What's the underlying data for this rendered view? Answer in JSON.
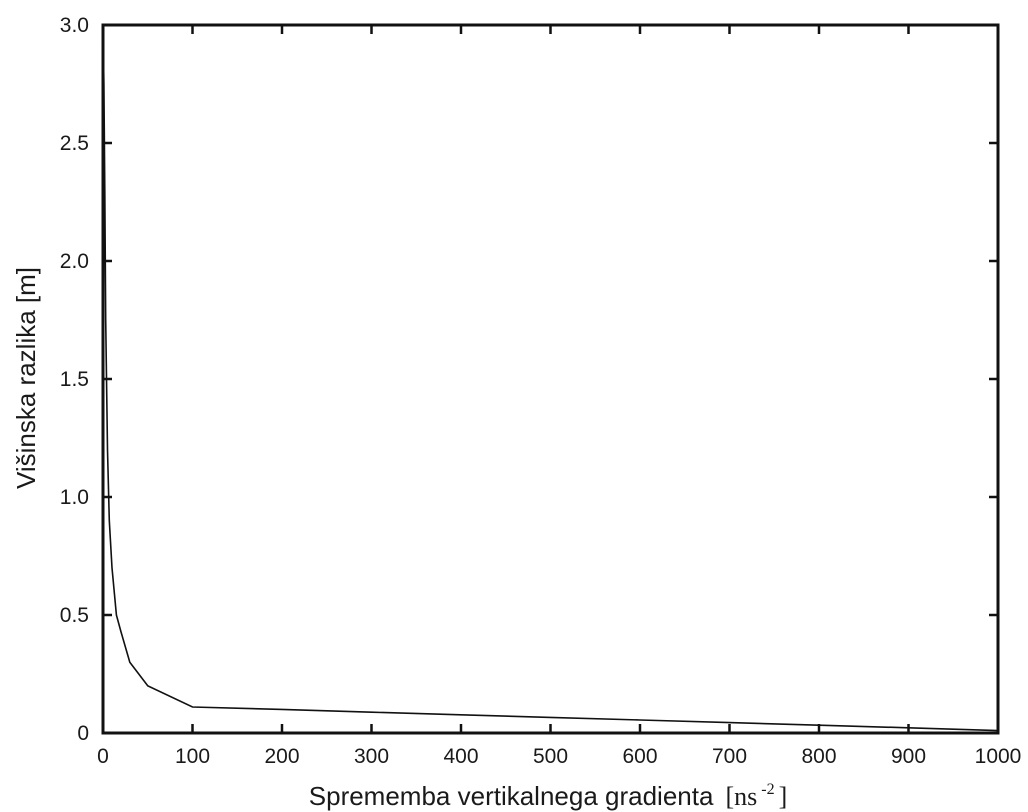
{
  "chart_data": {
    "type": "line",
    "title": "",
    "xlabel": "Sprememba vertikalnega gradienta",
    "xlabel_unit_open": "[ns",
    "xlabel_unit_exp": "-2",
    "xlabel_unit_close": "]",
    "ylabel": "Višinska razlika [m]",
    "xlim": [
      0,
      1000
    ],
    "ylim": [
      0,
      3.0
    ],
    "x_ticks": [
      0,
      100,
      200,
      300,
      400,
      500,
      600,
      700,
      800,
      900,
      1000
    ],
    "x_tick_labels": [
      "0",
      "100",
      "200",
      "300",
      "400",
      "500",
      "600",
      "700",
      "800",
      "900",
      "1000"
    ],
    "y_ticks": [
      0,
      0.5,
      1.0,
      1.5,
      2.0,
      2.5,
      3.0
    ],
    "y_tick_labels": [
      "0",
      "0.5",
      "1.0",
      "1.5",
      "2.0",
      "2.5",
      "3.0"
    ],
    "grid": false,
    "line_color": "#111111",
    "series": [
      {
        "x": [
          0,
          1,
          2,
          3,
          5,
          7,
          10,
          15,
          20,
          30,
          50,
          100,
          200,
          300,
          400,
          500,
          600,
          700,
          800,
          900,
          1000
        ],
        "y": [
          3.0,
          2.75,
          2.3,
          1.75,
          1.2,
          0.9,
          0.7,
          0.5,
          0.43,
          0.3,
          0.2,
          0.11,
          0.1,
          0.088,
          0.077,
          0.066,
          0.055,
          0.044,
          0.033,
          0.022,
          0.01
        ]
      }
    ]
  }
}
